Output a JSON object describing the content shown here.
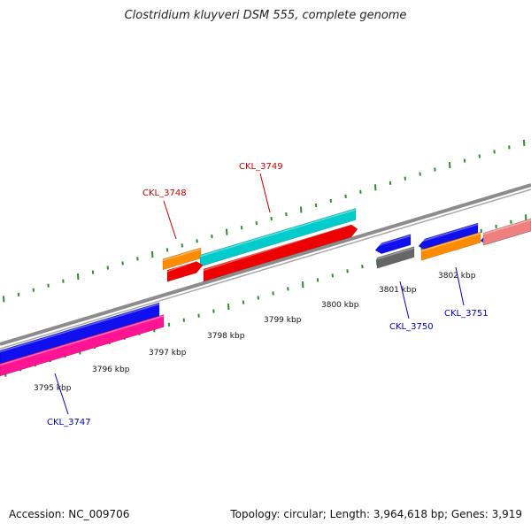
{
  "title": "Clostridium kluyveri DSM 555, complete genome",
  "footer": {
    "accession": "Accession: NC_009706",
    "stats": "Topology: circular; Length: 3,964,618 bp; Genes: 3,919"
  },
  "genome": {
    "accession": "NC_009706",
    "topology": "circular",
    "length_bp": 3964618,
    "genes": 3919
  },
  "colors": {
    "backbone": "#8c8c8c",
    "tick": "#2e8b2e",
    "scale_label": "#111111",
    "plus_gene_label": "#cc0000",
    "minus_gene_label": "#0000cc"
  },
  "scale_labels": [
    "3795 kbp",
    "3796 kbp",
    "3797 kbp",
    "3798 kbp",
    "3799 kbp",
    "3800 kbp",
    "3801 kbp",
    "3802 kbp"
  ],
  "gene_labels": [
    {
      "text": "CKL_3747",
      "strand": "minus"
    },
    {
      "text": "CKL_3748",
      "strand": "plus"
    },
    {
      "text": "CKL_3749",
      "strand": "plus"
    },
    {
      "text": "CKL_3750",
      "strand": "minus"
    },
    {
      "text": "CKL_3751",
      "strand": "minus"
    }
  ]
}
